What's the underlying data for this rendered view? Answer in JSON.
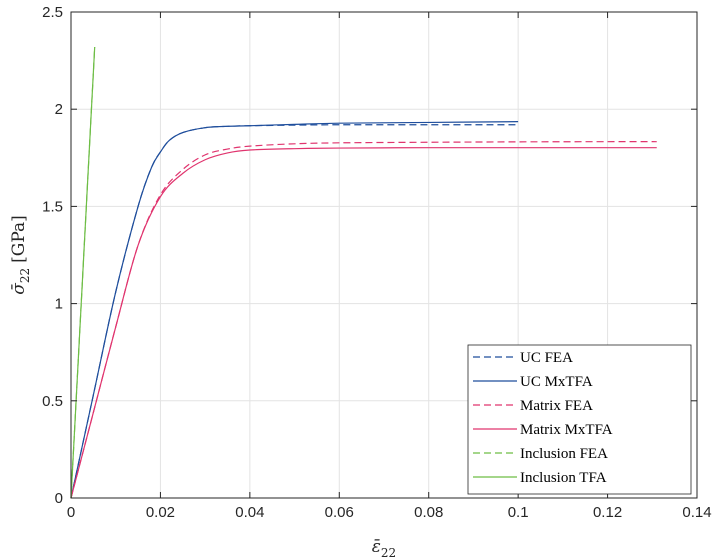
{
  "chart_data": {
    "type": "line",
    "title": "",
    "xlabel": "ε̄",
    "xlabel_sub": "22",
    "ylabel": "σ̄",
    "ylabel_sub": "22",
    "ylabel_unit": "[GPa]",
    "xlim": [
      0,
      0.14
    ],
    "ylim": [
      0,
      2.5
    ],
    "xticks": [
      0,
      0.02,
      0.04,
      0.06,
      0.08,
      0.1,
      0.12,
      0.14
    ],
    "yticks": [
      0,
      0.5,
      1,
      1.5,
      2,
      2.5
    ],
    "xtick_labels": [
      "0",
      "0.02",
      "0.04",
      "0.06",
      "0.08",
      "0.1",
      "0.12",
      "0.14"
    ],
    "ytick_labels": [
      "0",
      "0.5",
      "1",
      "1.5",
      "2",
      "2.5"
    ],
    "grid": true,
    "legend_position": "bottom-right",
    "series": [
      {
        "name": "UC FEA",
        "color": "#1f4e9c",
        "dash": "dashed",
        "x": [
          0,
          0.005,
          0.01,
          0.015,
          0.018,
          0.02,
          0.022,
          0.025,
          0.03,
          0.035,
          0.04,
          0.05,
          0.06,
          0.08,
          0.1
        ],
        "y": [
          0,
          0.53,
          1.06,
          1.5,
          1.7,
          1.78,
          1.84,
          1.88,
          1.905,
          1.912,
          1.915,
          1.918,
          1.92,
          1.92,
          1.92
        ]
      },
      {
        "name": "UC MxTFA",
        "color": "#1f4e9c",
        "dash": "solid",
        "x": [
          0,
          0.005,
          0.01,
          0.015,
          0.018,
          0.02,
          0.022,
          0.025,
          0.03,
          0.035,
          0.04,
          0.05,
          0.06,
          0.08,
          0.1
        ],
        "y": [
          0,
          0.53,
          1.06,
          1.5,
          1.7,
          1.78,
          1.84,
          1.88,
          1.905,
          1.912,
          1.915,
          1.922,
          1.928,
          1.932,
          1.936
        ]
      },
      {
        "name": "Matrix FEA",
        "color": "#e0346e",
        "dash": "dashed",
        "x": [
          0,
          0.005,
          0.01,
          0.015,
          0.02,
          0.025,
          0.03,
          0.035,
          0.04,
          0.05,
          0.06,
          0.08,
          0.1,
          0.12,
          0.131
        ],
        "y": [
          0,
          0.44,
          0.88,
          1.3,
          1.56,
          1.69,
          1.765,
          1.795,
          1.81,
          1.822,
          1.827,
          1.83,
          1.832,
          1.833,
          1.833
        ]
      },
      {
        "name": "Matrix MxTFA",
        "color": "#e0346e",
        "dash": "solid",
        "x": [
          0,
          0.005,
          0.01,
          0.015,
          0.02,
          0.025,
          0.03,
          0.035,
          0.04,
          0.05,
          0.06,
          0.08,
          0.1,
          0.12,
          0.131
        ],
        "y": [
          0,
          0.44,
          0.88,
          1.3,
          1.55,
          1.67,
          1.74,
          1.775,
          1.79,
          1.797,
          1.8,
          1.802,
          1.802,
          1.802,
          1.802
        ]
      },
      {
        "name": "Inclusion FEA",
        "color": "#6dbd45",
        "dash": "dashed",
        "x": [
          0,
          0.0053
        ],
        "y": [
          0,
          2.32
        ]
      },
      {
        "name": "Inclusion TFA",
        "color": "#6dbd45",
        "dash": "solid",
        "x": [
          0,
          0.0053
        ],
        "y": [
          0,
          2.32
        ]
      }
    ]
  }
}
